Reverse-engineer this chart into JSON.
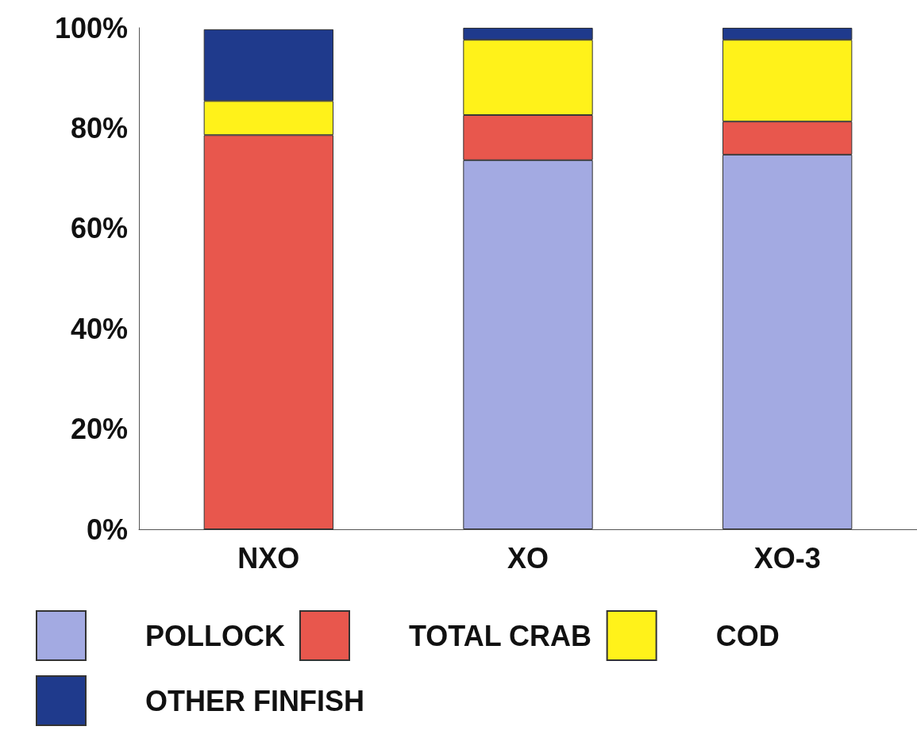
{
  "chart_data": {
    "type": "bar",
    "stacked": true,
    "categories": [
      "NXO",
      "XO",
      "XO-3"
    ],
    "series": [
      {
        "name": "POLLOCK",
        "color": "#a3aae2",
        "values": [
          0,
          73.6,
          74.7
        ]
      },
      {
        "name": "TOTAL CRAB",
        "color": "#e8574d",
        "values": [
          78.6,
          9,
          6.6
        ]
      },
      {
        "name": "COD",
        "color": "#fff21a",
        "values": [
          6.8,
          15,
          16.3
        ]
      },
      {
        "name": "OTHER FINFISH",
        "color": "#1f3a8c",
        "values": [
          14.3,
          2.4,
          2.4
        ]
      }
    ],
    "ylim": [
      0,
      100
    ],
    "yticks": [
      {
        "value": 0,
        "label": "0%"
      },
      {
        "value": 20,
        "label": "20%"
      },
      {
        "value": 40,
        "label": "40%"
      },
      {
        "value": 60,
        "label": "60%"
      },
      {
        "value": 80,
        "label": "80%"
      },
      {
        "value": 100,
        "label": "100%"
      }
    ],
    "grid": false,
    "legend": "bottom"
  }
}
